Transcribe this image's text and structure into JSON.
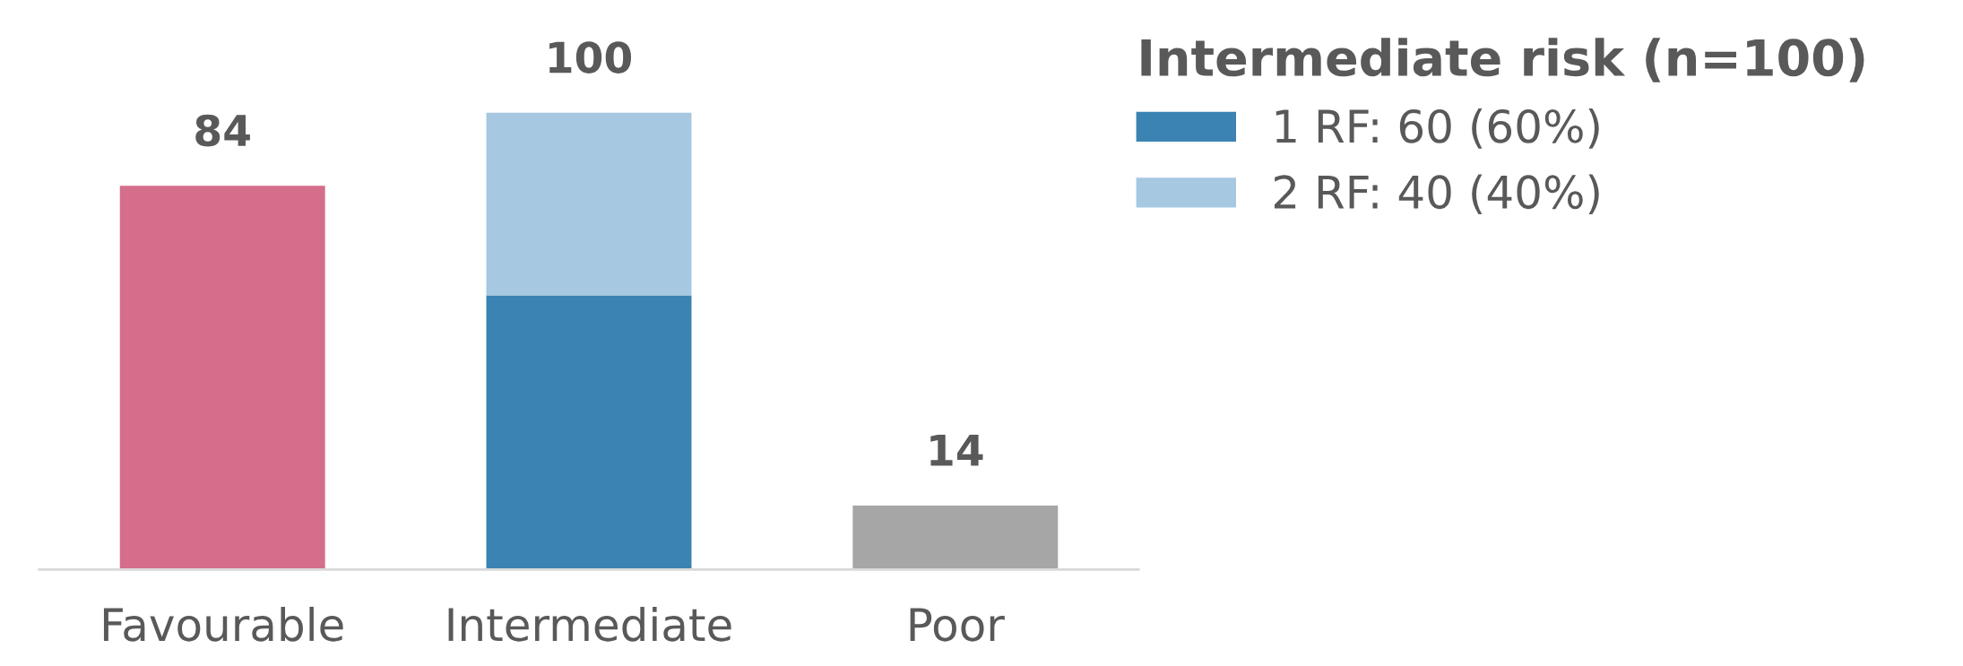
{
  "chart_data": {
    "type": "bar",
    "stacked": true,
    "categories": [
      "Favourable",
      "Intermediate",
      "Poor"
    ],
    "series": [
      {
        "name": "1 RF: 60 (60%)",
        "color": "#3a83b3",
        "colors": [
          "#d46e8b",
          "#3a83b3",
          "#a6a6a6"
        ],
        "values": [
          84,
          60,
          14
        ],
        "value_labels": [
          "84",
          null,
          "14"
        ]
      },
      {
        "name": "2 RF: 40 (40%)",
        "color": "#a6c8e1",
        "values": [
          null,
          40,
          null
        ]
      }
    ],
    "totals": [
      null,
      "100",
      null
    ],
    "legend_title": "Intermediate risk (n=100)",
    "legend": "right",
    "tick_labels": "x",
    "grid": false
  }
}
